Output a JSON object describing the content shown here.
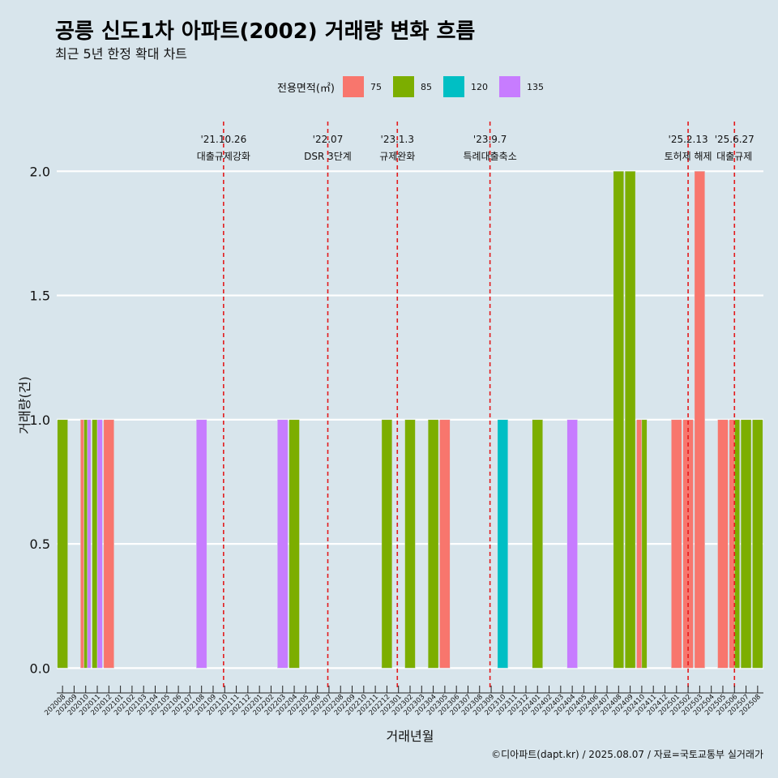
{
  "title": "공릉 신도1차 아파트(2002) 거래량 변화 흐름",
  "subtitle": "최근 5년 한정 확대 차트",
  "caption": "©디아파트(dapt.kr) / 2025.08.07 / 자료=국토교통부 실거래가",
  "legend": {
    "title": "전용면적(㎡)",
    "items": [
      {
        "label": "75",
        "color": "#f8766d"
      },
      {
        "label": "85",
        "color": "#7cae00"
      },
      {
        "label": "120",
        "color": "#00bfc4"
      },
      {
        "label": "135",
        "color": "#c77cff"
      }
    ]
  },
  "chart_data": {
    "type": "bar",
    "xlabel": "거래년월",
    "ylabel": "거래량(건)",
    "ylim": [
      -0.09,
      2.2
    ],
    "yticks": [
      0.0,
      0.5,
      1.0,
      1.5,
      2.0
    ],
    "ytick_labels": [
      "0.0",
      "0.5",
      "1.0",
      "1.5",
      "2.0"
    ],
    "grid": true,
    "legend_position": "top",
    "categories": [
      "202008",
      "202009",
      "202010",
      "202011",
      "202012",
      "202101",
      "202102",
      "202103",
      "202104",
      "202105",
      "202106",
      "202107",
      "202108",
      "202109",
      "202110",
      "202111",
      "202112",
      "202201",
      "202202",
      "202203",
      "202204",
      "202205",
      "202206",
      "202207",
      "202208",
      "202209",
      "202210",
      "202211",
      "202212",
      "202301",
      "202302",
      "202303",
      "202304",
      "202305",
      "202306",
      "202307",
      "202308",
      "202309",
      "202310",
      "202311",
      "202312",
      "202401",
      "202402",
      "202403",
      "202404",
      "202405",
      "202406",
      "202407",
      "202408",
      "202409",
      "202410",
      "202411",
      "202412",
      "202501",
      "202502",
      "202503",
      "202504",
      "202505",
      "202506",
      "202507",
      "202508"
    ],
    "bars": [
      {
        "category": "202008",
        "area": "85",
        "value": 1
      },
      {
        "category": "202010",
        "area": "75",
        "value": 1
      },
      {
        "category": "202010",
        "area": "85",
        "value": 1
      },
      {
        "category": "202010",
        "area": "135",
        "value": 1
      },
      {
        "category": "202011",
        "area": "85",
        "value": 1
      },
      {
        "category": "202011",
        "area": "135",
        "value": 1
      },
      {
        "category": "202012",
        "area": "75",
        "value": 1
      },
      {
        "category": "202108",
        "area": "135",
        "value": 1
      },
      {
        "category": "202203",
        "area": "135",
        "value": 1
      },
      {
        "category": "202204",
        "area": "85",
        "value": 1
      },
      {
        "category": "202212",
        "area": "85",
        "value": 1
      },
      {
        "category": "202302",
        "area": "85",
        "value": 1
      },
      {
        "category": "202304",
        "area": "85",
        "value": 1
      },
      {
        "category": "202305",
        "area": "75",
        "value": 1
      },
      {
        "category": "202310",
        "area": "120",
        "value": 1
      },
      {
        "category": "202401",
        "area": "85",
        "value": 1
      },
      {
        "category": "202404",
        "area": "135",
        "value": 1
      },
      {
        "category": "202408",
        "area": "85",
        "value": 2
      },
      {
        "category": "202409",
        "area": "85",
        "value": 2
      },
      {
        "category": "202410",
        "area": "75",
        "value": 1
      },
      {
        "category": "202410",
        "area": "85",
        "value": 1
      },
      {
        "category": "202501",
        "area": "75",
        "value": 1
      },
      {
        "category": "202502",
        "area": "75",
        "value": 1
      },
      {
        "category": "202503",
        "area": "75",
        "value": 2
      },
      {
        "category": "202505",
        "area": "75",
        "value": 1
      },
      {
        "category": "202506",
        "area": "75",
        "value": 1
      },
      {
        "category": "202506",
        "area": "85",
        "value": 1
      },
      {
        "category": "202507",
        "area": "85",
        "value": 1
      },
      {
        "category": "202508",
        "area": "85",
        "value": 1
      }
    ],
    "annotations": [
      {
        "date": "'21.10.26",
        "label": "대출규제강화",
        "at": 14.4
      },
      {
        "date": "'22.07",
        "label": "DSR 3단계",
        "at": 23.4
      },
      {
        "date": "'23.1.3",
        "label": "규제완화",
        "at": 29.4
      },
      {
        "date": "'23.9.7",
        "label": "특례대출축소",
        "at": 37.4
      },
      {
        "date": "'25.2.13",
        "label": "토허제 해제",
        "at": 54.5
      },
      {
        "date": "'25.6.27",
        "label": "대출규제",
        "at": 58.5
      }
    ]
  }
}
